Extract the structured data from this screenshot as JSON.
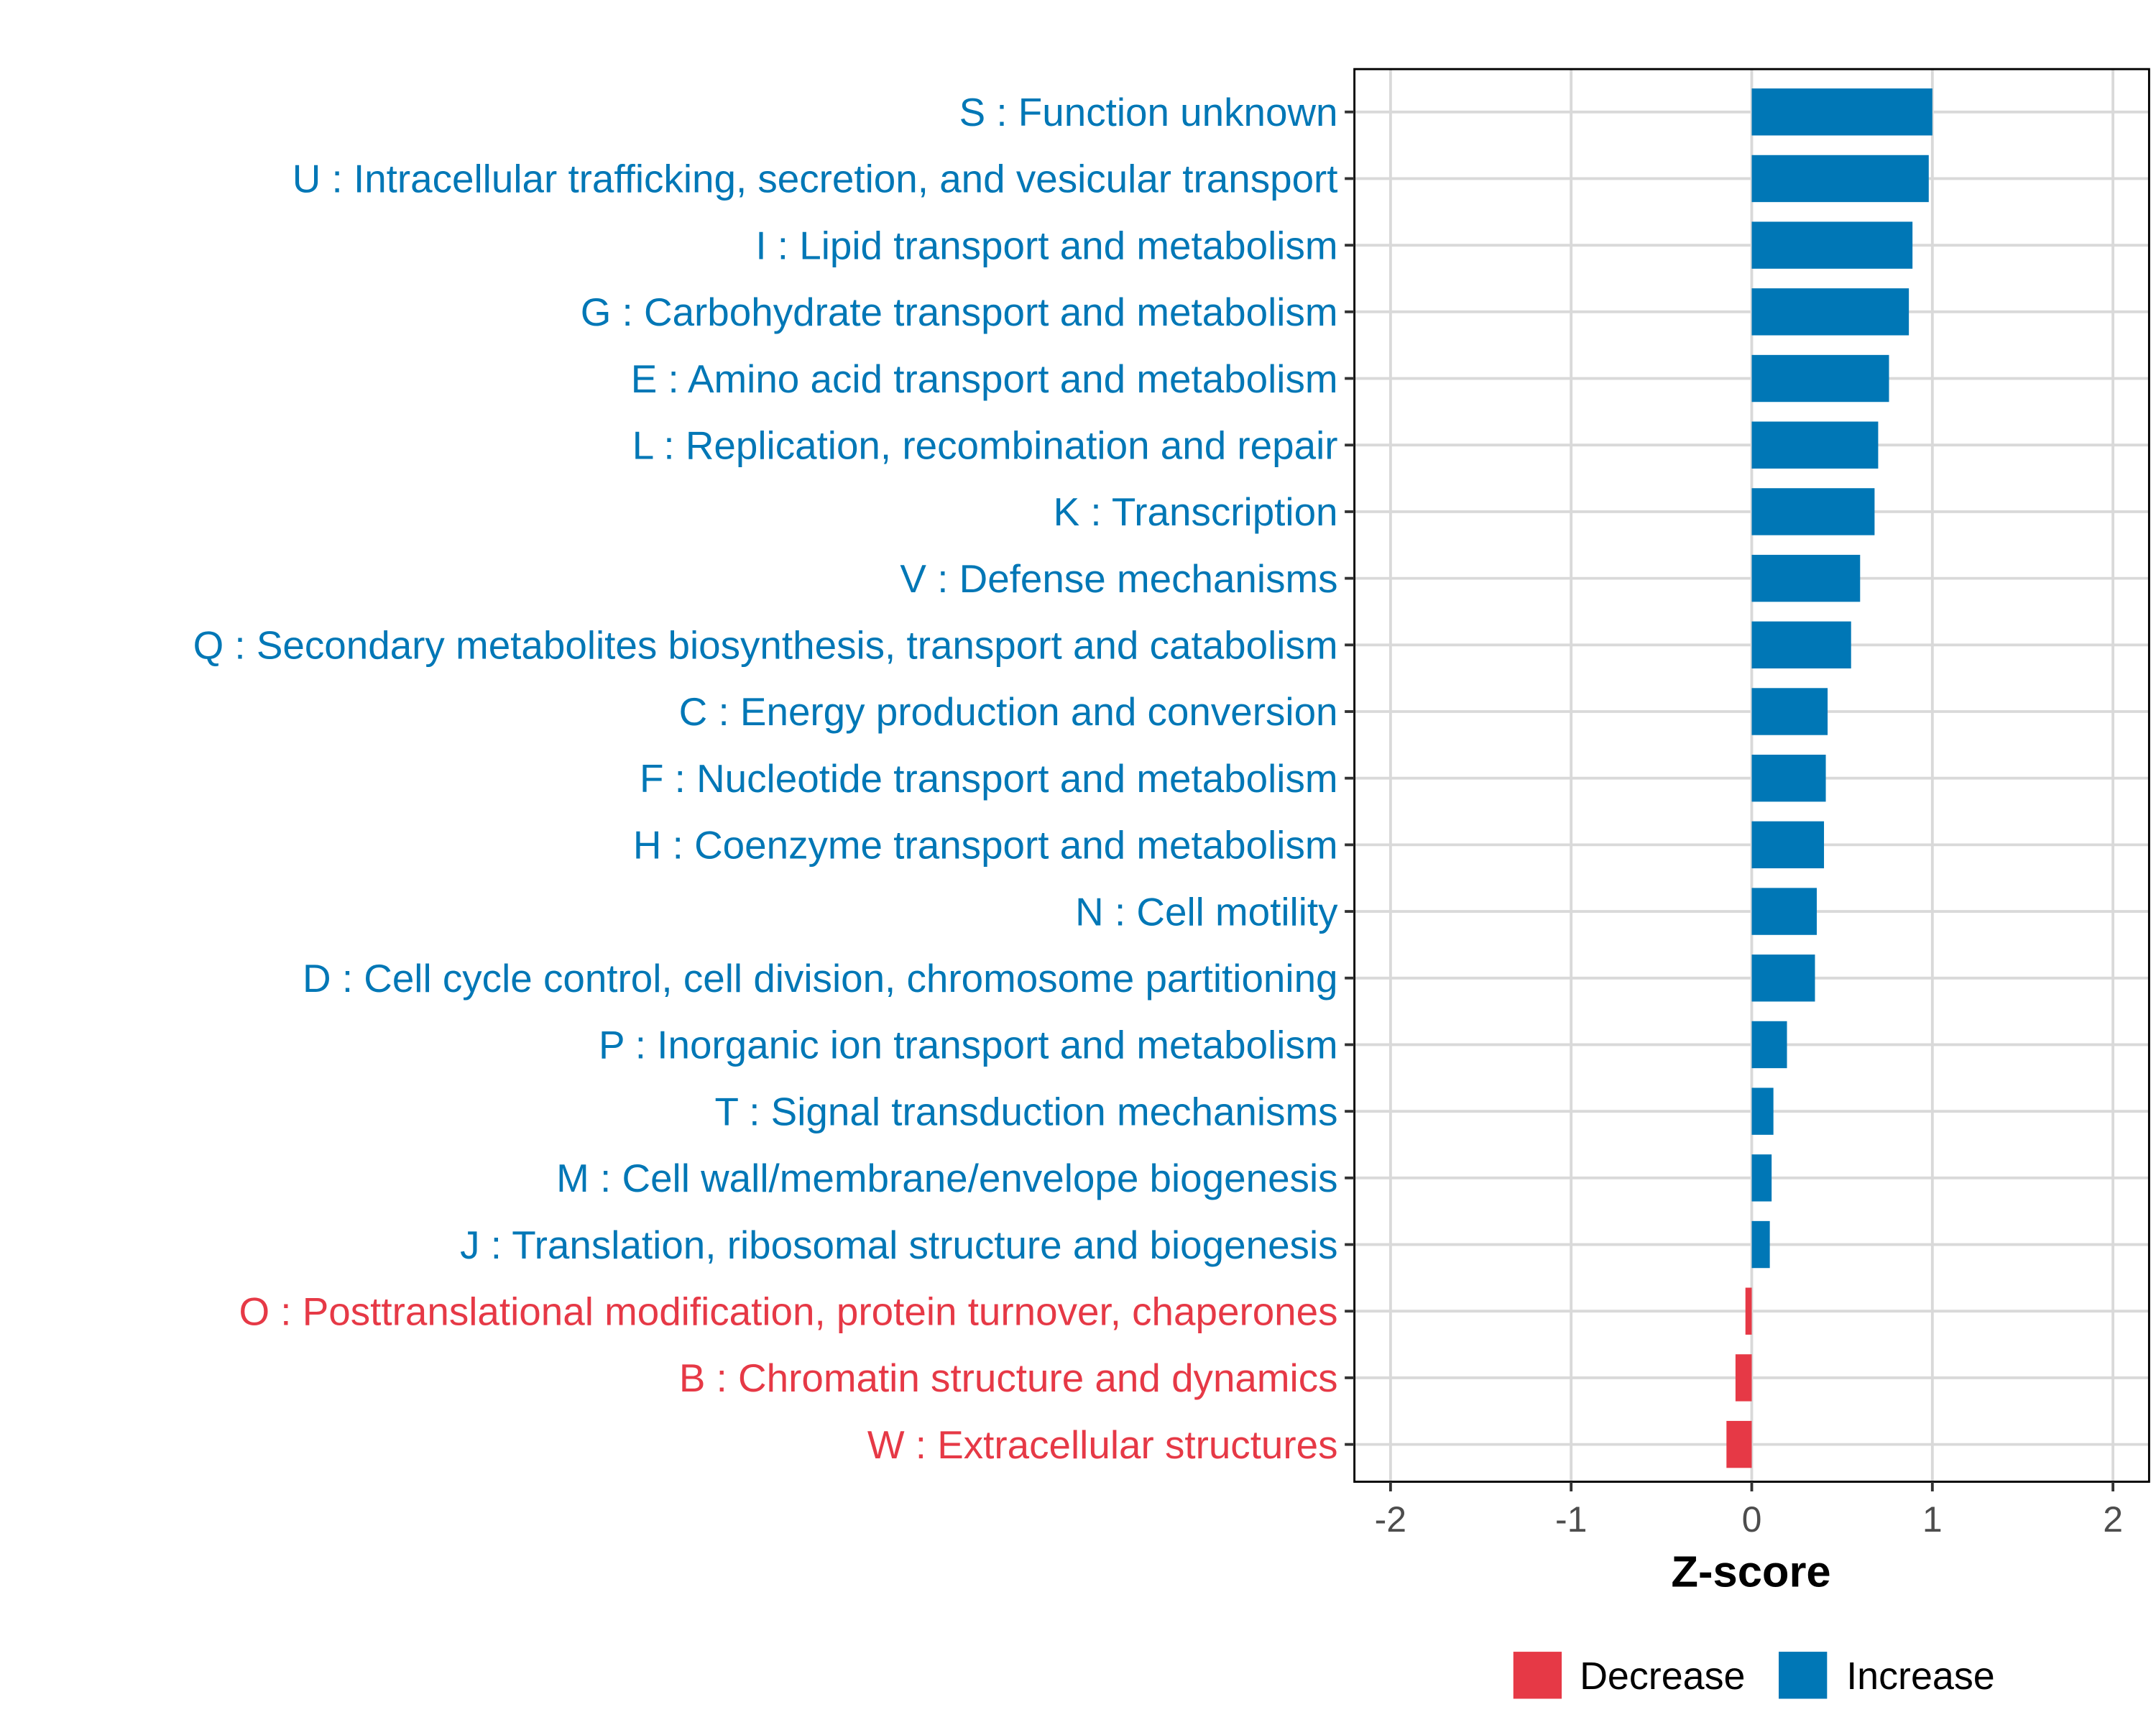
{
  "chart_data": {
    "type": "bar",
    "orientation": "horizontal",
    "title": "",
    "xlabel": "Z-score",
    "ylabel": "",
    "xlim": [
      -2.2,
      2.2
    ],
    "xticks": [
      -2,
      -1,
      0,
      1,
      2
    ],
    "xtick_labels": [
      "-2",
      "-1",
      "0",
      "1",
      "2"
    ],
    "grid": true,
    "legend_position": "bottom",
    "colors": {
      "Decrease": "#E63946",
      "Increase": "#0077B6"
    },
    "legend": [
      {
        "label": "Decrease",
        "color": "#E63946"
      },
      {
        "label": "Increase",
        "color": "#0077B6"
      }
    ],
    "categories": [
      "S : Function unknown",
      "U : Intracellular trafficking, secretion, and vesicular transport",
      "I : Lipid transport and metabolism",
      "G : Carbohydrate transport and metabolism",
      "E : Amino acid transport and metabolism",
      "L : Replication, recombination and repair",
      "K : Transcription",
      "V : Defense mechanisms",
      "Q : Secondary metabolites biosynthesis, transport and catabolism",
      "C : Energy production and conversion",
      "F : Nucleotide transport and metabolism",
      "H : Coenzyme transport and metabolism",
      "N : Cell motility",
      "D : Cell cycle control, cell division, chromosome partitioning",
      "P : Inorganic ion transport and metabolism",
      "T : Signal transduction mechanisms",
      "M : Cell wall/membrane/envelope biogenesis",
      "J : Translation, ribosomal structure and biogenesis",
      "O : Posttranslational modification, protein turnover, chaperones",
      "B : Chromatin structure and dynamics",
      "W : Extracellular structures"
    ],
    "values": [
      1.0,
      0.98,
      0.89,
      0.87,
      0.76,
      0.7,
      0.68,
      0.6,
      0.55,
      0.42,
      0.41,
      0.4,
      0.36,
      0.35,
      0.195,
      0.12,
      0.11,
      0.1,
      -0.035,
      -0.09,
      -0.14
    ]
  }
}
